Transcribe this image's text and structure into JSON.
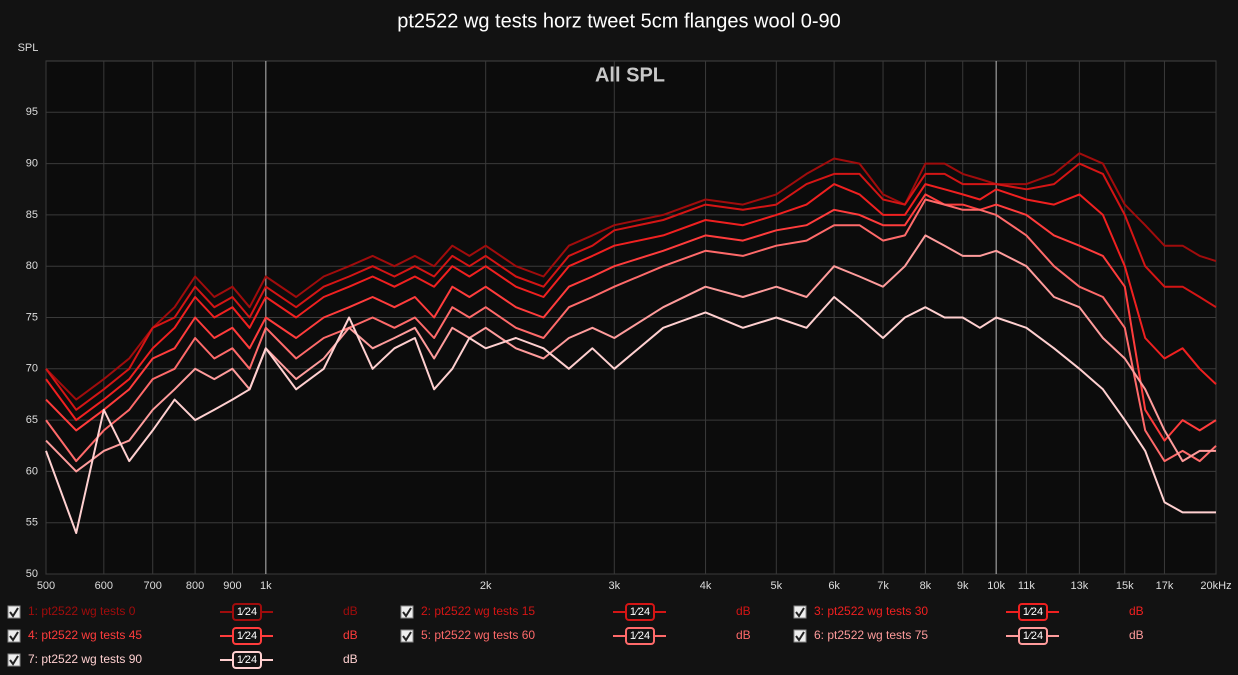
{
  "chart_data": {
    "type": "line",
    "title": "pt2522 wg tests horz tweet 5cm flanges wool 0-90",
    "annotation": "All SPL",
    "y_label": "SPL",
    "log_x": true,
    "grid": true,
    "xlim": [
      500,
      20000
    ],
    "ylim": [
      50,
      100
    ],
    "xticks": [
      500,
      600,
      700,
      800,
      900,
      {
        "value": 1000,
        "label": "1k"
      },
      {
        "value": 2000,
        "label": "2k"
      },
      {
        "value": 3000,
        "label": "3k"
      },
      {
        "value": 4000,
        "label": "4k"
      },
      {
        "value": 5000,
        "label": "5k"
      },
      {
        "value": 6000,
        "label": "6k"
      },
      {
        "value": 7000,
        "label": "7k"
      },
      {
        "value": 8000,
        "label": "8k"
      },
      {
        "value": 9000,
        "label": "9k"
      },
      {
        "value": 10000,
        "label": "10k"
      },
      {
        "value": 11000,
        "label": "11k"
      },
      {
        "value": 13000,
        "label": "13k"
      },
      {
        "value": 15000,
        "label": "15k"
      },
      {
        "value": 17000,
        "label": "17k"
      },
      {
        "value": 20000,
        "label": "20kHz"
      }
    ],
    "yticks": [
      50,
      55,
      60,
      65,
      70,
      75,
      80,
      85,
      90,
      95
    ],
    "legend_smoothing": "1⁄24",
    "legend_unit": "dB",
    "x": [
      500,
      550,
      600,
      650,
      700,
      750,
      800,
      850,
      900,
      950,
      1000,
      1100,
      1200,
      1300,
      1400,
      1500,
      1600,
      1700,
      1800,
      1900,
      2000,
      2200,
      2400,
      2600,
      2800,
      3000,
      3500,
      4000,
      4500,
      5000,
      5500,
      6000,
      6500,
      7000,
      7500,
      8000,
      8500,
      9000,
      9500,
      10000,
      11000,
      12000,
      13000,
      14000,
      15000,
      16000,
      17000,
      18000,
      19000,
      20000
    ],
    "series": [
      {
        "name": "1: pt2522 wg tests 0",
        "color": "#a00c0c",
        "values": [
          70,
          67,
          69,
          71,
          74,
          76,
          79,
          77,
          78,
          76,
          79,
          77,
          79,
          80,
          81,
          80,
          81,
          80,
          82,
          81,
          82,
          80,
          79,
          82,
          83,
          84,
          85,
          86.5,
          86,
          87,
          89,
          90.5,
          90,
          87,
          86,
          90,
          90,
          89,
          88.5,
          88,
          88,
          89,
          91,
          90,
          86,
          84,
          82,
          82,
          81,
          80.5
        ]
      },
      {
        "name": "2: pt2522 wg tests 15",
        "color": "#d41515",
        "values": [
          70,
          66,
          68,
          70,
          74,
          75,
          78,
          76,
          77,
          75,
          78,
          76,
          78,
          79,
          80,
          79,
          80,
          79,
          81,
          80,
          81,
          79,
          78,
          81,
          82,
          83.5,
          84.5,
          86,
          85.5,
          86,
          88,
          89,
          89,
          86.5,
          86,
          89,
          89,
          88,
          88,
          88,
          87.5,
          88,
          90,
          89,
          85,
          80,
          78,
          78,
          77,
          76
        ]
      },
      {
        "name": "3: pt2522 wg tests 30",
        "color": "#f02020",
        "values": [
          69,
          65,
          67,
          69,
          72,
          74,
          77,
          75,
          76,
          74,
          77,
          75,
          77,
          78,
          79,
          78,
          79,
          78,
          80,
          79,
          80,
          78,
          77,
          80,
          81,
          82,
          83,
          84.5,
          84,
          85,
          86,
          88,
          87,
          85,
          85,
          88,
          87.5,
          87,
          86.5,
          87.5,
          86.5,
          86,
          87,
          85,
          80,
          73,
          71,
          72,
          70,
          68.5
        ]
      },
      {
        "name": "4: pt2522 wg tests 45",
        "color": "#ff3c3c",
        "values": [
          67,
          64,
          66,
          68,
          71,
          72,
          75,
          73,
          74,
          72,
          75,
          73,
          75,
          76,
          77,
          76,
          77,
          75,
          78,
          77,
          78,
          76,
          75,
          78,
          79,
          80,
          81.5,
          83,
          82.5,
          83.5,
          84,
          85.5,
          85,
          84,
          84,
          87,
          86,
          86,
          85.5,
          86,
          85,
          83,
          82,
          81,
          78,
          66,
          63,
          65,
          64,
          65
        ]
      },
      {
        "name": "5: pt2522 wg tests 60",
        "color": "#ff6a6a",
        "values": [
          65,
          61,
          64,
          66,
          69,
          70,
          73,
          71,
          72,
          70,
          74,
          71,
          73,
          74,
          75,
          74,
          75,
          73,
          76,
          75,
          76,
          74,
          73,
          76,
          77,
          78,
          80,
          81.5,
          81,
          82,
          82.5,
          84,
          84,
          82.5,
          83,
          86.5,
          86,
          85.5,
          85.5,
          85,
          83,
          80,
          78,
          77,
          74,
          64,
          61,
          62,
          61,
          62.5
        ]
      },
      {
        "name": "6: pt2522 wg tests 75",
        "color": "#ff9c9c",
        "values": [
          63,
          60,
          62,
          63,
          66,
          68,
          70,
          69,
          70,
          68,
          72,
          69,
          71,
          74,
          72,
          73,
          74,
          71,
          74,
          73,
          74,
          72,
          71,
          73,
          74,
          73,
          76,
          78,
          77,
          78,
          77,
          80,
          79,
          78,
          80,
          83,
          82,
          81,
          81,
          81.5,
          80,
          77,
          76,
          73,
          71,
          68,
          64,
          61,
          62,
          62
        ]
      },
      {
        "name": "7: pt2522 wg tests 90",
        "color": "#ffd0d0",
        "values": [
          62,
          54,
          66,
          61,
          64,
          67,
          65,
          66,
          67,
          68,
          72,
          68,
          70,
          75,
          70,
          72,
          73,
          68,
          70,
          73,
          72,
          73,
          72,
          70,
          72,
          70,
          74,
          75.5,
          74,
          75,
          74,
          77,
          75,
          73,
          75,
          76,
          75,
          75,
          74,
          75,
          74,
          72,
          70,
          68,
          65,
          62,
          57,
          56,
          56,
          56
        ]
      }
    ]
  }
}
